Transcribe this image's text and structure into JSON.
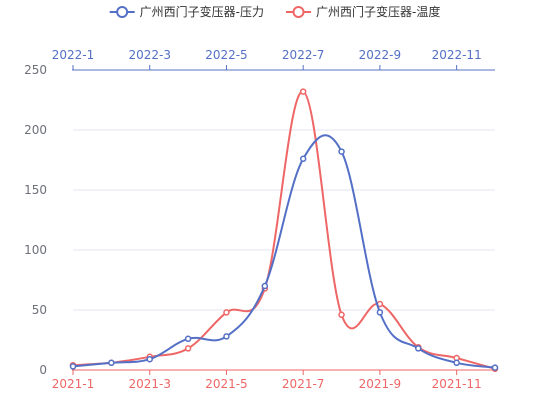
{
  "chart_data": {
    "type": "line",
    "smooth": true,
    "grid": "horizontal",
    "legend_position": "top-center",
    "series": [
      {
        "name": "广州西门子变压器-压力",
        "color": "#5470c6",
        "axis": "top",
        "x": [
          "2022-1",
          "2022-2",
          "2022-3",
          "2022-4",
          "2022-5",
          "2022-6",
          "2022-7",
          "2022-8",
          "2022-9",
          "2022-10",
          "2022-11",
          "2022-12"
        ],
        "values": [
          3,
          6,
          9,
          26,
          28,
          70,
          176,
          182,
          48,
          18,
          6,
          2
        ]
      },
      {
        "name": "广州西门子变压器-温度",
        "color": "#ee6666",
        "axis": "bottom",
        "x": [
          "2021-1",
          "2021-2",
          "2021-3",
          "2021-4",
          "2021-5",
          "2021-6",
          "2021-7",
          "2021-8",
          "2021-9",
          "2021-10",
          "2021-11",
          "2021-12"
        ],
        "values": [
          4,
          6,
          11,
          18,
          48,
          68,
          232,
          46,
          55,
          19,
          10,
          1
        ]
      }
    ],
    "x_top": {
      "color": "#5470c6",
      "categories": [
        "2022-1",
        "2022-2",
        "2022-3",
        "2022-4",
        "2022-5",
        "2022-6",
        "2022-7",
        "2022-8",
        "2022-9",
        "2022-10",
        "2022-11",
        "2022-12"
      ],
      "tick_labels": [
        "2022-1",
        "2022-3",
        "2022-5",
        "2022-7",
        "2022-9",
        "2022-11"
      ]
    },
    "x_bottom": {
      "color": "#ee6666",
      "categories": [
        "2021-1",
        "2021-2",
        "2021-3",
        "2021-4",
        "2021-5",
        "2021-6",
        "2021-7",
        "2021-8",
        "2021-9",
        "2021-10",
        "2021-11",
        "2021-12"
      ],
      "tick_labels": [
        "2021-1",
        "2021-3",
        "2021-5",
        "2021-7",
        "2021-9",
        "2021-11"
      ]
    },
    "y": {
      "ylim": [
        0,
        250
      ],
      "ticks": [
        0,
        50,
        100,
        150,
        200,
        250
      ]
    }
  }
}
